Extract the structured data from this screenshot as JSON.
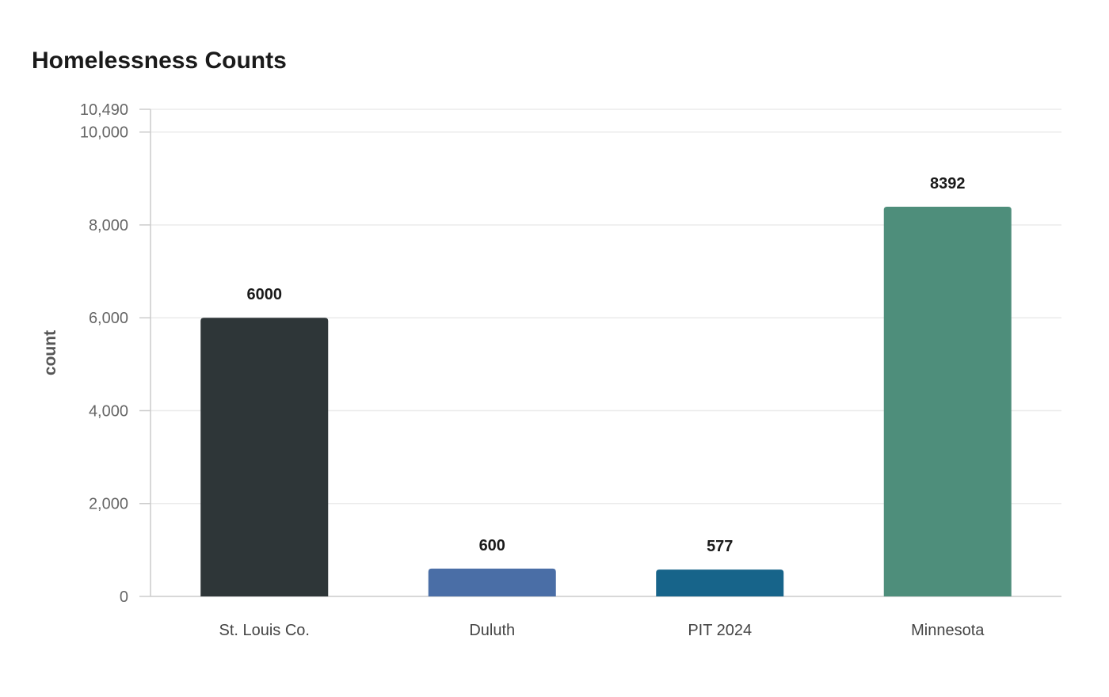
{
  "chart_data": {
    "type": "bar",
    "title": "Homelessness Counts",
    "xlabel": "",
    "ylabel": "count",
    "categories": [
      "St. Louis Co.",
      "Duluth",
      "PIT 2024",
      "Minnesota"
    ],
    "values": [
      6000,
      600,
      577,
      8392
    ],
    "value_labels": [
      "6000",
      "600",
      "577",
      "8392"
    ],
    "colors": [
      "#2e3638",
      "#4a6ea6",
      "#17648a",
      "#4e8e7b"
    ],
    "ylim": [
      0,
      10490
    ],
    "yticks": [
      0,
      2000,
      4000,
      6000,
      8000,
      10000,
      10490
    ],
    "ytick_labels": [
      "0",
      "2,000",
      "4,000",
      "6,000",
      "8,000",
      "10,000",
      "10,490"
    ],
    "grid": true,
    "legend": "none"
  }
}
